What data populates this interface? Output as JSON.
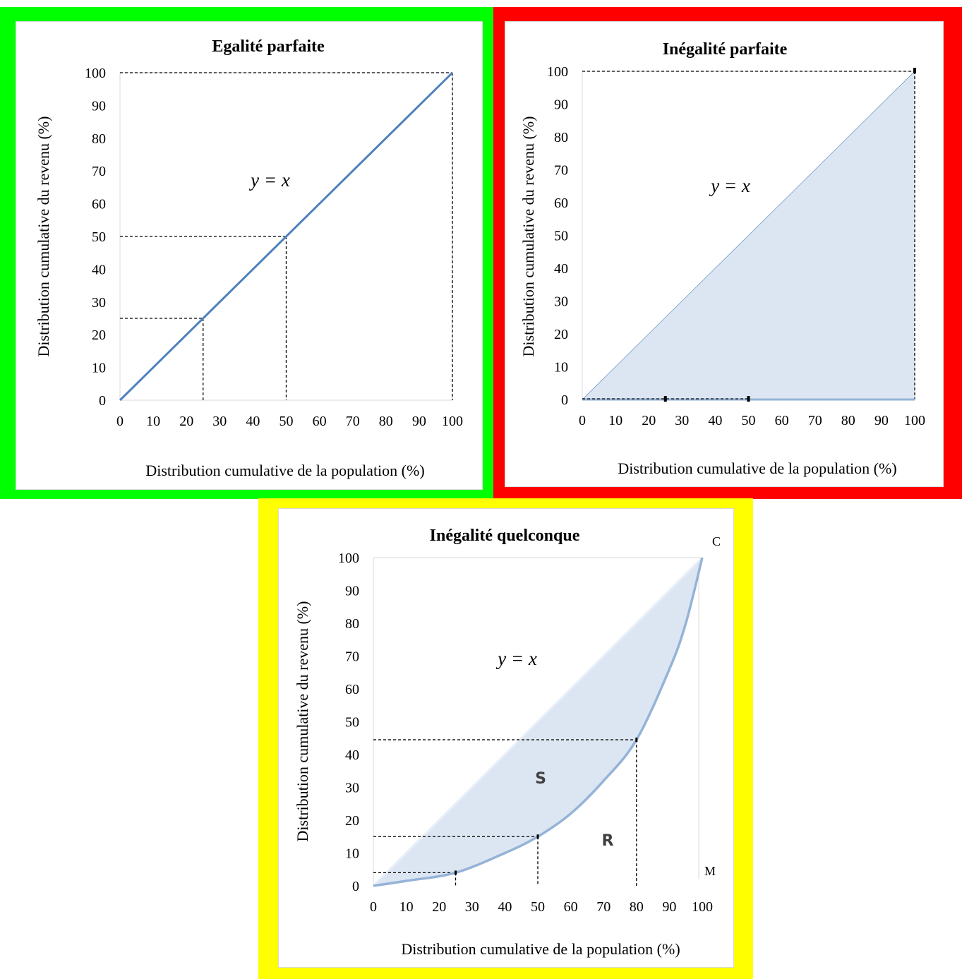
{
  "colors": {
    "frame_green": "#00ff00",
    "frame_red": "#ff0000",
    "frame_yellow": "#ffff00",
    "line": "#4f81bd",
    "curve": "#95b3d7",
    "fill": "#dce6f2",
    "guide": "#000000"
  },
  "chart_data": [
    {
      "type": "line",
      "title": "Egalité parfaite",
      "xlabel": "Distribution cumulative de la population (%)",
      "ylabel": "Distribution cumulative du revenu (%)",
      "xlim": [
        0,
        100
      ],
      "ylim": [
        0,
        100
      ],
      "xticks": [
        0,
        10,
        20,
        30,
        40,
        50,
        60,
        70,
        80,
        90,
        100
      ],
      "yticks": [
        0,
        10,
        20,
        30,
        40,
        50,
        60,
        70,
        80,
        90,
        100
      ],
      "equation": "y = x",
      "series": [
        {
          "x": [
            0,
            100
          ],
          "y": [
            0,
            100
          ]
        }
      ],
      "guides": [
        [
          25,
          25
        ],
        [
          50,
          50
        ],
        [
          100,
          100
        ]
      ]
    },
    {
      "type": "area",
      "title": "Inégalité parfaite",
      "xlabel": "Distribution cumulative de la population (%)",
      "ylabel": "Distribution cumulative du revenu (%)",
      "xlim": [
        0,
        100
      ],
      "ylim": [
        0,
        100
      ],
      "xticks": [
        0,
        10,
        20,
        30,
        40,
        50,
        60,
        70,
        80,
        90,
        100
      ],
      "yticks": [
        0,
        10,
        20,
        30,
        40,
        50,
        60,
        70,
        80,
        90,
        100
      ],
      "equation": "y = x",
      "series": [
        {
          "x": [
            0,
            25,
            50,
            100,
            100
          ],
          "y": [
            0,
            0,
            0,
            0,
            100
          ]
        }
      ],
      "guides": [
        [
          25,
          0
        ],
        [
          50,
          0
        ],
        [
          100,
          100
        ]
      ]
    },
    {
      "type": "area",
      "title": "Inégalité quelconque",
      "xlabel": "Distribution cumulative de la population (%)",
      "ylabel": "Distribution cumulative du revenu (%)",
      "xlim": [
        0,
        100
      ],
      "ylim": [
        0,
        100
      ],
      "xticks": [
        0,
        10,
        20,
        30,
        40,
        50,
        60,
        70,
        80,
        90,
        100
      ],
      "yticks": [
        0,
        10,
        20,
        30,
        40,
        50,
        60,
        70,
        80,
        90,
        100
      ],
      "equation": "y = x",
      "series": [
        {
          "x": [
            0,
            10,
            25,
            40,
            50,
            60,
            70,
            80,
            90,
            95,
            100
          ],
          "y": [
            0,
            1.5,
            4,
            10,
            15,
            22,
            32,
            44.5,
            66,
            80,
            100
          ]
        }
      ],
      "guides": [
        [
          25,
          4
        ],
        [
          50,
          15
        ],
        [
          80,
          44.5
        ]
      ],
      "regions": [
        "S",
        "R"
      ],
      "corners": [
        "C",
        "M"
      ]
    }
  ]
}
